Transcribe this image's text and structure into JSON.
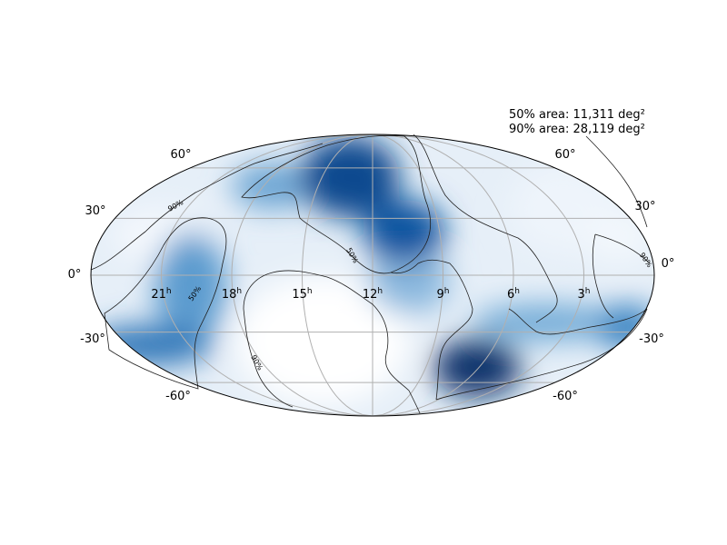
{
  "stats": {
    "area50": "50% area: 11,311 deg²",
    "area90": "90% area: 28,119 deg²"
  },
  "map": {
    "projection": "mollweide",
    "colormap": "Blues",
    "ra_ticks": [
      {
        "hours": 21,
        "text": "21"
      },
      {
        "hours": 18,
        "text": "18"
      },
      {
        "hours": 15,
        "text": "15"
      },
      {
        "hours": 12,
        "text": "12"
      },
      {
        "hours": 9,
        "text": "9"
      },
      {
        "hours": 6,
        "text": "6"
      },
      {
        "hours": 3,
        "text": "3"
      }
    ],
    "ra_unit": "h",
    "dec_ticks": [
      "60°",
      "30°",
      "0°",
      "-30°",
      "-60°"
    ],
    "contour_labels": [
      "90%",
      "50%",
      "50%",
      "90%",
      "90%"
    ]
  }
}
